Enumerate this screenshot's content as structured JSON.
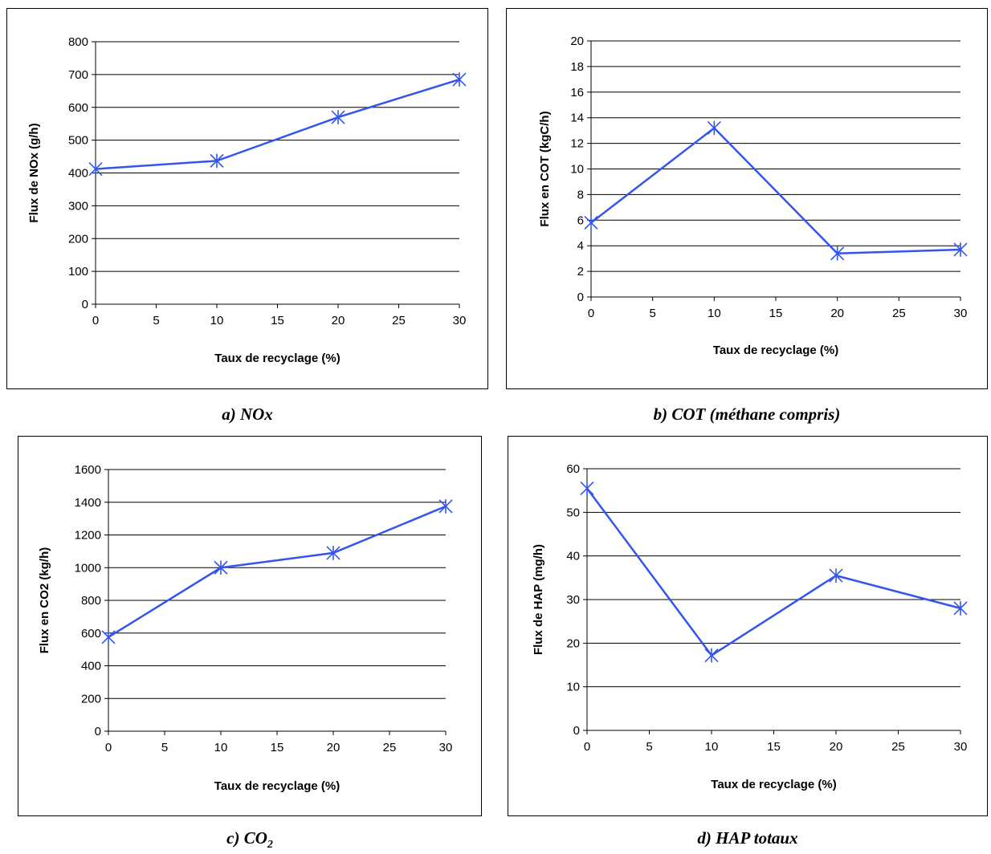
{
  "chart_data": [
    {
      "id": "a",
      "type": "line",
      "xlabel": "Taux de recyclage (%)",
      "ylabel": "Flux de NOx (g/h)",
      "xlim": [
        0,
        30
      ],
      "xticks": [
        0,
        5,
        10,
        15,
        20,
        25,
        30
      ],
      "ylim": [
        0,
        800
      ],
      "yticks": [
        0,
        100,
        200,
        300,
        400,
        500,
        600,
        700,
        800
      ],
      "grid": "horizontal",
      "marker": "asterisk",
      "color": "#3355ee",
      "series": [
        {
          "x": [
            0,
            10,
            20,
            30
          ],
          "y": [
            412,
            437,
            570,
            685
          ]
        }
      ]
    },
    {
      "id": "b",
      "type": "line",
      "xlabel": "Taux de recyclage (%)",
      "ylabel": "Flux en COT (kgC/h)",
      "xlim": [
        0,
        30
      ],
      "xticks": [
        0,
        5,
        10,
        15,
        20,
        25,
        30
      ],
      "ylim": [
        0,
        20
      ],
      "yticks": [
        0,
        2,
        4,
        6,
        8,
        10,
        12,
        14,
        16,
        18,
        20
      ],
      "grid": "horizontal",
      "marker": "asterisk",
      "color": "#3355ee",
      "series": [
        {
          "x": [
            0,
            10,
            20,
            30
          ],
          "y": [
            5.8,
            13.2,
            3.4,
            3.7
          ]
        }
      ]
    },
    {
      "id": "c",
      "type": "line",
      "xlabel": "Taux de recyclage (%)",
      "ylabel": "Flux en CO2 (kg/h)",
      "xlim": [
        0,
        30
      ],
      "xticks": [
        0,
        5,
        10,
        15,
        20,
        25,
        30
      ],
      "ylim": [
        0,
        1600
      ],
      "yticks": [
        0,
        200,
        400,
        600,
        800,
        1000,
        1200,
        1400,
        1600
      ],
      "grid": "horizontal",
      "marker": "asterisk",
      "color": "#3355ee",
      "series": [
        {
          "x": [
            0,
            10,
            20,
            30
          ],
          "y": [
            575,
            1000,
            1090,
            1375
          ]
        }
      ]
    },
    {
      "id": "d",
      "type": "line",
      "xlabel": "Taux de recyclage (%)",
      "ylabel": "Flux de HAP (mg/h)",
      "xlim": [
        0,
        30
      ],
      "xticks": [
        0,
        5,
        10,
        15,
        20,
        25,
        30
      ],
      "ylim": [
        0,
        60
      ],
      "yticks": [
        0,
        10,
        20,
        30,
        40,
        50,
        60
      ],
      "grid": "horizontal",
      "marker": "asterisk",
      "color": "#3355ee",
      "series": [
        {
          "x": [
            0,
            10,
            20,
            30
          ],
          "y": [
            55.5,
            17.2,
            35.5,
            28
          ]
        }
      ]
    }
  ],
  "captions": {
    "a": "a) NOx",
    "b": "b) COT (méthane compris)",
    "c_main": "c) CO",
    "c_sub": "2",
    "d": "d) HAP totaux"
  }
}
